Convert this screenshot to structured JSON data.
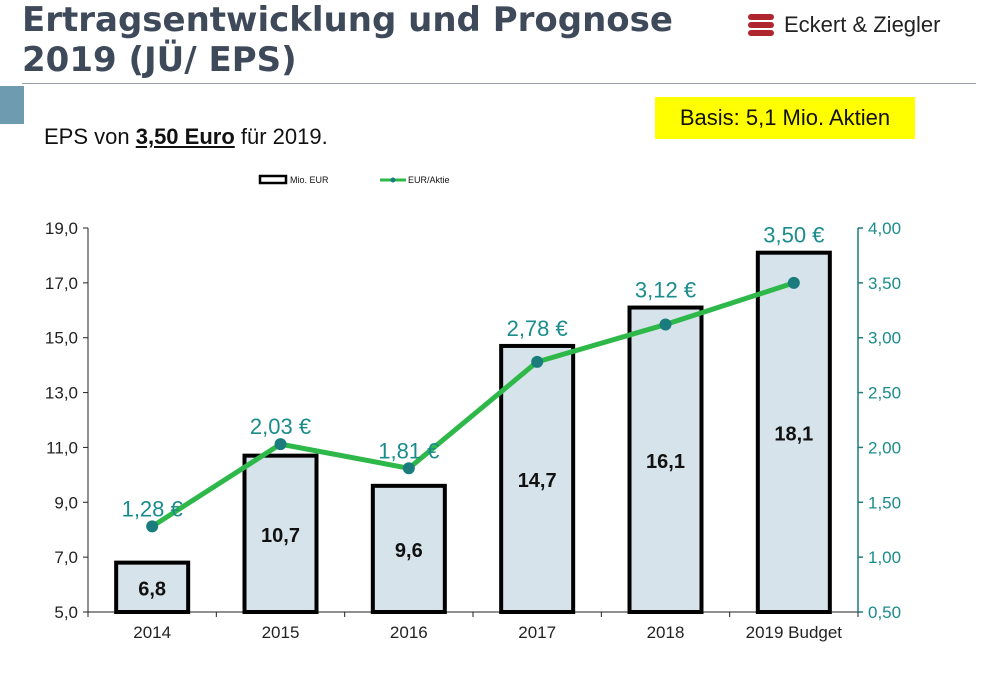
{
  "header": {
    "title_line1": "Ertragsentwicklung und Prognose",
    "title_line2": "2019 (JÜ/ EPS)",
    "logo_text": "Eckert & Ziegler"
  },
  "subtitle": {
    "prefix": "EPS von ",
    "emphasis": "3,50 Euro",
    "suffix": " für 2019."
  },
  "basis_box": {
    "text": "Basis: 5,1 Mio. Aktien"
  },
  "colors": {
    "bar_fill": "#d6e3ea",
    "line": "#2eb84a",
    "marker": "#1a7c7c",
    "eps_label": "#1a8c8c",
    "basis_bg": "#ffff00",
    "logo_red": "#b0262e"
  },
  "chart_data": {
    "type": "bar+line",
    "categories": [
      "2014",
      "2015",
      "2016",
      "2017",
      "2018",
      "2019 Budget"
    ],
    "series": [
      {
        "name": "Mio. EUR",
        "type": "bar",
        "axis": "left",
        "values": [
          6.8,
          10.7,
          9.6,
          14.7,
          16.1,
          18.1
        ],
        "labels": [
          "6,8",
          "10,7",
          "9,6",
          "14,7",
          "16,1",
          "18,1"
        ]
      },
      {
        "name": "EUR/Aktie",
        "type": "line",
        "axis": "right",
        "values": [
          1.28,
          2.03,
          1.81,
          2.78,
          3.12,
          3.5
        ],
        "labels": [
          "1,28 €",
          "2,03 €",
          "1,81 €",
          "2,78 €",
          "3,12 €",
          "3,50 €"
        ]
      }
    ],
    "y_left": {
      "min": 5.0,
      "max": 19.0,
      "ticks": [
        "5,0",
        "7,0",
        "9,0",
        "11,0",
        "13,0",
        "15,0",
        "17,0",
        "19,0"
      ]
    },
    "y_right": {
      "min": 0.5,
      "max": 4.0,
      "ticks": [
        "0,50",
        "1,00",
        "1,50",
        "2,00",
        "2,50",
        "3,00",
        "3,50",
        "4,00"
      ]
    },
    "legend_position": "top",
    "grid": false
  }
}
